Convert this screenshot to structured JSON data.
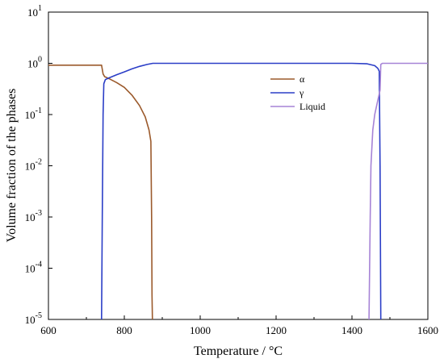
{
  "chart_data": {
    "type": "line",
    "xlabel": "Temperature / °C",
    "ylabel": "Volume fraction of the phases",
    "xlim": [
      600,
      1600
    ],
    "ylim": [
      1e-05,
      10
    ],
    "yscale": "log",
    "xticks": [
      "600",
      "800",
      "1000",
      "1200",
      "1400",
      "1600"
    ],
    "yticks": [
      {
        "base": "10",
        "exp": "-5"
      },
      {
        "base": "10",
        "exp": "-4"
      },
      {
        "base": "10",
        "exp": "-3"
      },
      {
        "base": "10",
        "exp": "-2"
      },
      {
        "base": "10",
        "exp": "-1"
      },
      {
        "base": "10",
        "exp": "0"
      },
      {
        "base": "10",
        "exp": "1"
      }
    ],
    "legend_position": "right",
    "grid": false,
    "series": [
      {
        "name": "α",
        "color": "#9b5a2c",
        "x": [
          600,
          740,
          744,
          748,
          760,
          780,
          800,
          820,
          840,
          855,
          865,
          870,
          872,
          873,
          874
        ],
        "y": [
          0.92,
          0.92,
          0.62,
          0.55,
          0.5,
          0.42,
          0.34,
          0.24,
          0.15,
          0.09,
          0.05,
          0.03,
          0.001,
          3e-05,
          1e-05
        ]
      },
      {
        "name": "γ",
        "color": "#2b3ec7",
        "x": [
          740,
          742,
          744,
          746,
          750,
          760,
          780,
          800,
          820,
          840,
          860,
          875,
          900,
          1000,
          1200,
          1400,
          1440,
          1460,
          1468,
          1472,
          1474,
          1476
        ],
        "y": [
          1e-05,
          0.001,
          0.1,
          0.4,
          0.48,
          0.52,
          0.6,
          0.68,
          0.78,
          0.87,
          0.95,
          1.0,
          1.0,
          1.0,
          1.0,
          1.0,
          0.98,
          0.9,
          0.8,
          0.7,
          0.01,
          1e-05
        ]
      },
      {
        "name": "Liquid",
        "color": "#a683d6",
        "x": [
          1445,
          1448,
          1450,
          1455,
          1460,
          1465,
          1470,
          1474,
          1476,
          1480,
          1600
        ],
        "y": [
          1e-05,
          0.001,
          0.01,
          0.05,
          0.1,
          0.15,
          0.22,
          0.3,
          0.95,
          1.0,
          1.0
        ]
      }
    ]
  }
}
